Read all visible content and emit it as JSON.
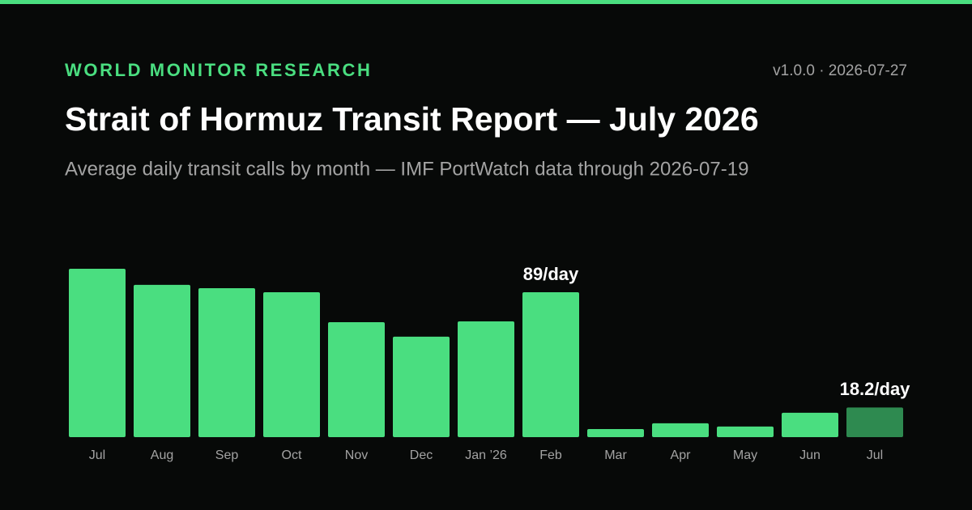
{
  "header": {
    "brand": "WORLD MONITOR RESEARCH",
    "meta": "v1.0.0 · 2026-07-27"
  },
  "chart_data": {
    "type": "bar",
    "title": "Strait of Hormuz Transit Report — July 2026",
    "subtitle": "Average daily transit calls by month — IMF PortWatch data through 2026-07-19",
    "categories": [
      "Jul",
      "Aug",
      "Sep",
      "Oct",
      "Nov",
      "Dec",
      "Jan ’26",
      "Feb",
      "Mar",
      "Apr",
      "May",
      "Jun",
      "Jul"
    ],
    "values": [
      103.4,
      93.5,
      91.5,
      89,
      70.6,
      61.7,
      71.1,
      89,
      5,
      8.5,
      6.5,
      15,
      18.2
    ],
    "value_labels": [
      null,
      null,
      null,
      null,
      null,
      null,
      null,
      "89/day",
      null,
      null,
      null,
      null,
      "18.2/day"
    ],
    "colors": [
      "#4ade80",
      "#4ade80",
      "#4ade80",
      "#4ade80",
      "#4ade80",
      "#4ade80",
      "#4ade80",
      "#4ade80",
      "#4ade80",
      "#4ade80",
      "#4ade80",
      "#4ade80",
      "#2e8a50"
    ]
  }
}
